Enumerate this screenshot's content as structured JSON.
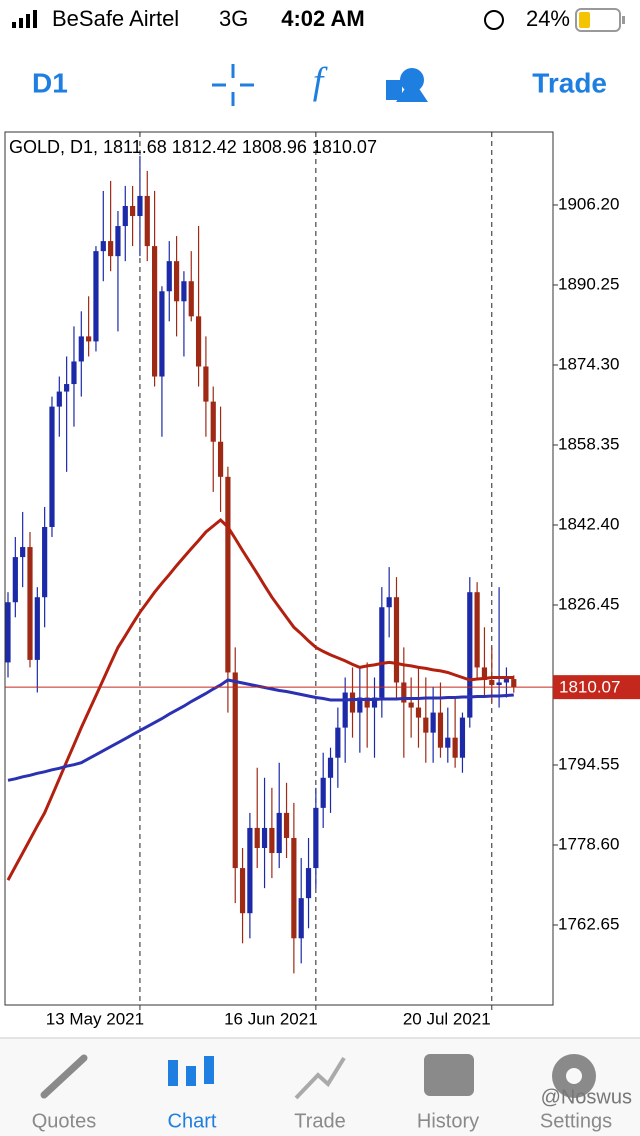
{
  "status_bar": {
    "carrier": "BeSafe Airtel",
    "network": "3G",
    "time": "4:02 AM",
    "battery": "24%"
  },
  "toolbar": {
    "timeframe": "D1",
    "trade": "Trade"
  },
  "chart_data": {
    "type": "candlestick",
    "title": "GOLD, D1, 1811.68 1812.42 1808.96 1810.07",
    "categories": [
      null,
      null,
      null,
      null,
      null,
      null,
      null,
      null,
      null,
      null,
      null,
      null,
      null,
      null,
      null,
      null,
      null,
      null,
      "13 May 2021",
      null,
      null,
      null,
      null,
      null,
      null,
      null,
      null,
      null,
      null,
      null,
      null,
      null,
      null,
      null,
      null,
      null,
      null,
      null,
      null,
      null,
      null,
      null,
      "16 Jun 2021",
      null,
      null,
      null,
      null,
      null,
      null,
      null,
      null,
      null,
      null,
      null,
      null,
      null,
      null,
      null,
      null,
      null,
      null,
      null,
      null,
      null,
      null,
      null,
      "20 Jul 2021",
      null,
      null,
      null
    ],
    "open": [
      1815,
      1827,
      1836,
      1838,
      1815.5,
      1828,
      1842,
      1866,
      1869,
      1870.5,
      1875,
      1880,
      1879,
      1897,
      1899,
      1896,
      1902,
      1906,
      1904,
      1908,
      1898,
      1872,
      1889,
      1895,
      1887,
      1891,
      1884,
      1874,
      1867,
      1859,
      1852,
      1813,
      1774,
      1765,
      1782,
      1778,
      1782,
      1777,
      1785,
      1780,
      1760,
      1768,
      1774,
      1786,
      1792,
      1796,
      1802,
      1809,
      1805,
      1808,
      1806,
      1808,
      1826,
      1828,
      1811,
      1807,
      1806,
      1804,
      1801,
      1805,
      1798,
      1800,
      1796,
      1804,
      1829,
      1814,
      1811.5,
      1810.5,
      1811,
      1811.68
    ],
    "high": [
      1829,
      1840,
      1845,
      1841,
      1830,
      1846,
      1868,
      1872,
      1876,
      1882,
      1885,
      1888,
      1898,
      1909,
      1911,
      1905,
      1910,
      1910,
      1916,
      1913,
      1909,
      1890,
      1899,
      1900,
      1893,
      1897,
      1902,
      1880,
      1870,
      1866,
      1854,
      1818,
      1778,
      1785,
      1794,
      1792,
      1790,
      1795,
      1791,
      1787,
      1776,
      1780,
      1790,
      1797,
      1798,
      1806,
      1812,
      1814,
      1814,
      1815,
      1812,
      1830,
      1834,
      1832,
      1818,
      1812,
      1814,
      1812,
      1810,
      1811,
      1806,
      1808,
      1805,
      1832,
      1831,
      1822,
      1818,
      1830,
      1814,
      1812.42
    ],
    "low": [
      1812,
      1824,
      1830,
      1814,
      1809,
      1822,
      1840,
      1860,
      1853,
      1862,
      1868,
      1876,
      1877,
      1891,
      1893,
      1881,
      1895,
      1898,
      1896,
      1895,
      1870,
      1860,
      1883,
      1880,
      1876,
      1883,
      1870,
      1860,
      1849,
      1845,
      1805,
      1767,
      1759,
      1760,
      1774,
      1770,
      1772,
      1774,
      1776,
      1753,
      1755,
      1762,
      1770,
      1782,
      1785,
      1790,
      1795,
      1800,
      1797,
      1798,
      1796,
      1804,
      1820,
      1808,
      1796,
      1800,
      1798,
      1795,
      1795,
      1796,
      1795,
      1794,
      1793,
      1802,
      1812,
      1808,
      1807,
      1806,
      1808,
      1808.96
    ],
    "close": [
      1827,
      1836,
      1838,
      1815.5,
      1828,
      1842,
      1866,
      1869,
      1870.5,
      1875,
      1880,
      1879,
      1897,
      1899,
      1896,
      1902,
      1906,
      1904,
      1908,
      1898,
      1872,
      1889,
      1895,
      1887,
      1891,
      1884,
      1874,
      1867,
      1859,
      1852,
      1813,
      1774,
      1765,
      1782,
      1778,
      1782,
      1777,
      1785,
      1780,
      1760,
      1768,
      1774,
      1786,
      1792,
      1796,
      1802,
      1809,
      1805,
      1808,
      1806,
      1808,
      1826,
      1828,
      1811,
      1807,
      1806,
      1804,
      1801,
      1805,
      1798,
      1800,
      1796,
      1804,
      1829,
      1814,
      1811.5,
      1810.5,
      1811,
      1811.68,
      1810.07
    ],
    "up_color": "#1c2aa8",
    "down_color": "#9e2a16",
    "moving_averages": [
      {
        "color": "#b3200f",
        "values": [
          1771.6,
          1774.3,
          1777,
          1779.7,
          1782.4,
          1785,
          1788.4,
          1791.8,
          1795.2,
          1798.6,
          1802,
          1805.2,
          1808.4,
          1811.6,
          1814.8,
          1818,
          1820.3,
          1822.7,
          1825,
          1827,
          1829,
          1830.8,
          1832.5,
          1834.3,
          1836,
          1837.7,
          1839.3,
          1841,
          1842.2,
          1843.4,
          1842,
          1839.7,
          1837.3,
          1835,
          1832.7,
          1830.3,
          1828,
          1826,
          1824,
          1822,
          1820.7,
          1819.3,
          1818,
          1817.2,
          1816.5,
          1815.9,
          1815.3,
          1814.6,
          1814,
          1814.3,
          1814.5,
          1814.8,
          1815,
          1814.8,
          1814.5,
          1814.3,
          1814,
          1813.8,
          1813.5,
          1813.3,
          1813,
          1812.5,
          1812,
          1811.5,
          1811.7,
          1811.8,
          1812,
          1812,
          1812,
          1812
        ]
      },
      {
        "color": "#2b31b3",
        "values": [
          1791.5,
          1791.8,
          1792.2,
          1792.5,
          1792.9,
          1793.2,
          1793.6,
          1793.9,
          1794.3,
          1794.6,
          1795,
          1795.8,
          1796.6,
          1797.4,
          1798.2,
          1799,
          1799.8,
          1800.6,
          1801.4,
          1802.2,
          1803,
          1803.8,
          1804.7,
          1805.5,
          1806.3,
          1807.2,
          1808,
          1808.8,
          1809.7,
          1810.5,
          1811.5,
          1811.2,
          1810.9,
          1810.6,
          1810.3,
          1810,
          1809.7,
          1809.4,
          1809.2,
          1808.9,
          1808.6,
          1808.3,
          1808,
          1807.8,
          1807.5,
          1807.5,
          1807.5,
          1807.6,
          1807.6,
          1807.6,
          1807.6,
          1807.7,
          1807.7,
          1807.7,
          1807.8,
          1807.8,
          1807.8,
          1807.9,
          1807.9,
          1807.9,
          1808,
          1808,
          1808.1,
          1808.1,
          1808.2,
          1808.2,
          1808.3,
          1808.3,
          1808.4,
          1808.5
        ]
      }
    ],
    "current_price": 1810.07,
    "current_price_color": "#c4281c",
    "ylim": [
      1746.7,
      1920.75
    ],
    "yticks": [
      {
        "value": 1906.2,
        "label": "1906.20"
      },
      1890.25,
      {
        "value": 1874.3,
        "label": "1874.30"
      },
      1858.35,
      {
        "value": 1842.4,
        "label": "1842.40"
      },
      1826.45,
      1794.55,
      {
        "value": 1778.6,
        "label": "1778.60"
      },
      1762.65
    ]
  },
  "tab_bar": {
    "tabs": [
      "Quotes",
      "Chart",
      "Trade",
      "History",
      "Settings"
    ],
    "active": 1
  },
  "watermark": "@Noswus"
}
